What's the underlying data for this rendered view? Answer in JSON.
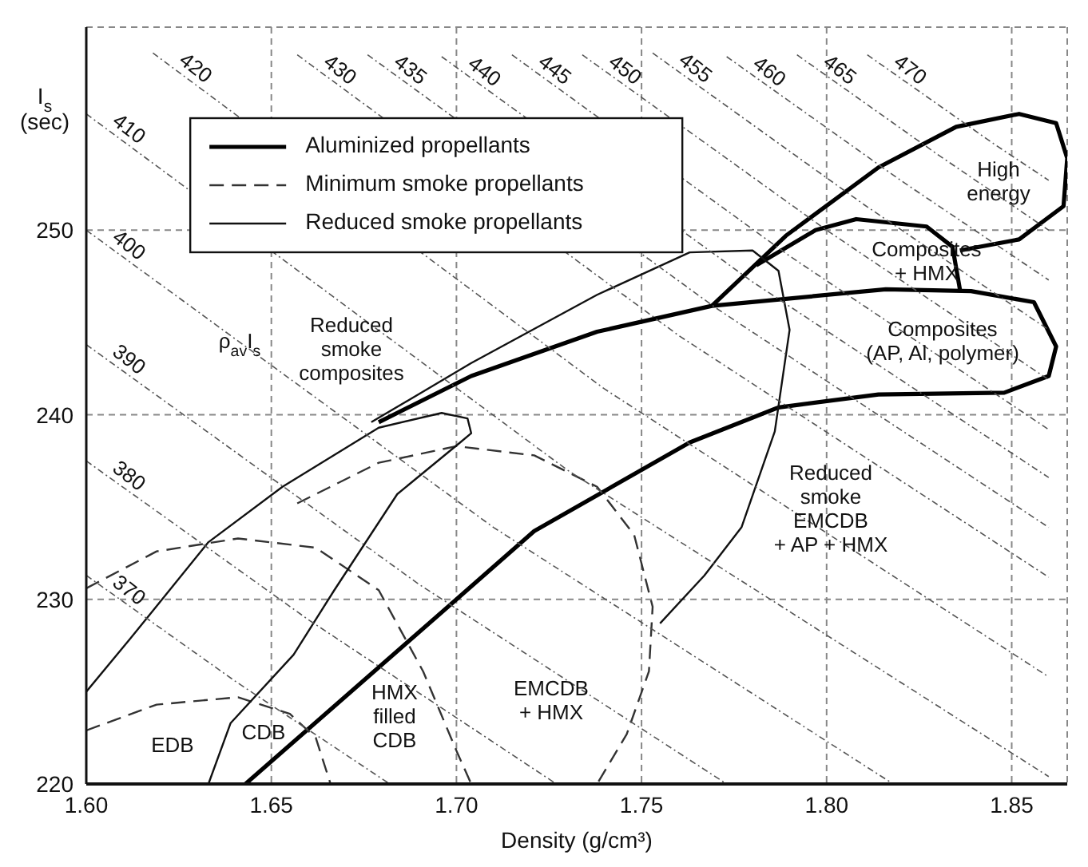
{
  "chart_data": {
    "type": "line",
    "xlabel": "Density (g/cm³)",
    "ylabel": "I$_{s}$\n(sec)",
    "xlim": [
      1.6,
      1.865
    ],
    "ylim": [
      220,
      261
    ],
    "xticks": [
      {
        "value": 1.6,
        "label": "1.60"
      },
      {
        "value": 1.65,
        "label": "1.65"
      },
      {
        "value": 1.7,
        "label": "1.70"
      },
      {
        "value": 1.75,
        "label": "1.75"
      },
      {
        "value": 1.8,
        "label": "1.80"
      },
      {
        "value": 1.85,
        "label": "1.85"
      }
    ],
    "yticks": [
      220,
      230,
      240,
      250
    ],
    "grid": true,
    "legend": "top left",
    "series": [
      {
        "name": "Aluminized propellants",
        "color": "#000000",
        "line_style": "solid",
        "x": [
          1.643,
          1.7,
          1.721,
          1.763,
          1.787,
          1.814,
          1.848,
          1.86,
          1.862,
          1.856,
          1.839,
          1.816,
          1.769,
          1.738,
          1.704,
          1.679
        ],
        "values": [
          220.0,
          230.0,
          233.7,
          238.5,
          240.4,
          241.1,
          241.2,
          242.1,
          243.7,
          246.1,
          246.7,
          246.8,
          245.9,
          244.5,
          242.1,
          239.6
        ]
      },
      {
        "color": "#000000",
        "line_style": "solid",
        "x": [
          1.769,
          1.789,
          1.814,
          1.835,
          1.852,
          1.862,
          1.865,
          1.864,
          1.852,
          1.836
        ],
        "values": [
          245.9,
          249.7,
          253.4,
          255.6,
          256.3,
          255.8,
          253.9,
          251.3,
          249.5,
          248.9
        ]
      },
      {
        "color": "#000000",
        "line_style": "solid",
        "x": [
          1.781,
          1.797,
          1.808,
          1.827,
          1.834,
          1.836
        ],
        "values": [
          248.1,
          250.0,
          250.6,
          250.2,
          249.1,
          246.8
        ]
      },
      {
        "name": "Minimum smoke propellants",
        "color": "#333333",
        "line_style": "dashed",
        "x": [
          1.6,
          1.619,
          1.641,
          1.655,
          1.662,
          1.666
        ],
        "values": [
          222.9,
          224.3,
          224.7,
          223.8,
          222.5,
          220.0
        ]
      },
      {
        "color": "#333333",
        "line_style": "dashed",
        "x": [
          1.6,
          1.619,
          1.641,
          1.662,
          1.679,
          1.691,
          1.7,
          1.704
        ],
        "values": [
          230.6,
          232.6,
          233.3,
          232.8,
          230.5,
          226.1,
          221.8,
          220.0
        ]
      },
      {
        "color": "#333333",
        "line_style": "dashed",
        "x": [
          1.657,
          1.679,
          1.7,
          1.721,
          1.738,
          1.748,
          1.753,
          1.752,
          1.746,
          1.738
        ],
        "values": [
          235.2,
          237.4,
          238.3,
          237.8,
          236.1,
          233.5,
          229.6,
          226.1,
          222.7,
          220.0
        ]
      },
      {
        "name": "Reduced smoke propellants",
        "color": "#111111",
        "line_style": "solid",
        "x": [
          1.6,
          1.612,
          1.633,
          1.653,
          1.679,
          1.696,
          1.703,
          1.704,
          1.701,
          1.684,
          1.667,
          1.656,
          1.639,
          1.633
        ],
        "values": [
          225.0,
          227.9,
          233.1,
          236.1,
          239.3,
          240.1,
          239.8,
          239.0,
          238.5,
          235.7,
          230.5,
          227.0,
          223.3,
          220.0
        ]
      },
      {
        "color": "#111111",
        "line_style": "solid",
        "x": [
          1.677,
          1.704,
          1.738,
          1.763,
          1.78,
          1.787,
          1.79,
          1.786,
          1.777,
          1.767,
          1.755
        ],
        "values": [
          239.6,
          242.8,
          246.5,
          248.8,
          248.9,
          247.8,
          244.6,
          239.1,
          233.9,
          231.3,
          228.7
        ]
      },
      {
        "name": "370",
        "color": "#555555",
        "line_style": "dotted",
        "x": [
          1.6,
          1.64,
          1.682
        ],
        "values": [
          231.3,
          225.6,
          220.0
        ]
      },
      {
        "name": "380",
        "color": "#555555",
        "line_style": "dotted",
        "x": [
          1.6,
          1.66,
          1.727
        ],
        "values": [
          237.5,
          228.9,
          220.0
        ]
      },
      {
        "name": "390",
        "color": "#555555",
        "line_style": "dotted",
        "x": [
          1.6,
          1.69,
          1.773
        ],
        "values": [
          243.8,
          230.8,
          220.0
        ]
      },
      {
        "name": "400",
        "color": "#555555",
        "line_style": "dotted",
        "x": [
          1.6,
          1.71,
          1.818
        ],
        "values": [
          250.0,
          233.9,
          220.0
        ]
      },
      {
        "name": "410",
        "color": "#555555",
        "line_style": "dotted",
        "x": [
          1.6,
          1.73,
          1.86
        ],
        "values": [
          256.3,
          237.0,
          220.4
        ]
      },
      {
        "name": "420",
        "color": "#555555",
        "line_style": "dotted",
        "x": [
          1.618,
          1.74,
          1.86
        ],
        "values": [
          259.6,
          241.4,
          225.8
        ]
      },
      {
        "name": "430",
        "color": "#555555",
        "line_style": "dotted",
        "x": [
          1.657,
          1.76,
          1.86
        ],
        "values": [
          259.5,
          244.3,
          231.2
        ]
      },
      {
        "name": "435",
        "color": "#555555",
        "line_style": "dotted",
        "x": [
          1.676,
          1.77,
          1.86
        ],
        "values": [
          259.5,
          245.8,
          233.9
        ]
      },
      {
        "name": "440",
        "color": "#555555",
        "line_style": "dotted",
        "x": [
          1.696,
          1.78,
          1.86
        ],
        "values": [
          259.4,
          247.2,
          236.6
        ]
      },
      {
        "name": "445",
        "color": "#555555",
        "line_style": "dotted",
        "x": [
          1.715,
          1.79,
          1.86
        ],
        "values": [
          259.5,
          248.6,
          239.2
        ]
      },
      {
        "name": "450",
        "color": "#555555",
        "line_style": "dotted",
        "x": [
          1.734,
          1.8,
          1.86
        ],
        "values": [
          259.5,
          250.0,
          241.9
        ]
      },
      {
        "name": "455",
        "color": "#555555",
        "line_style": "dotted",
        "x": [
          1.753,
          1.81,
          1.86
        ],
        "values": [
          259.6,
          251.4,
          244.6
        ]
      },
      {
        "name": "460",
        "color": "#555555",
        "line_style": "dotted",
        "x": [
          1.773,
          1.82,
          1.86
        ],
        "values": [
          259.4,
          252.7,
          247.3
        ]
      },
      {
        "name": "465",
        "color": "#555555",
        "line_style": "dotted",
        "x": [
          1.792,
          1.83,
          1.86
        ],
        "values": [
          259.5,
          254.1,
          250.0
        ]
      },
      {
        "name": "470",
        "color": "#555555",
        "line_style": "dotted",
        "x": [
          1.811,
          1.845,
          1.86
        ],
        "values": [
          259.5,
          254.7,
          252.7
        ]
      }
    ],
    "annotations": [
      "High\nenergy",
      "Composites\n+ HMX",
      "Composites\n(AP, Al, polymer)",
      "Reduced\nsmoke\ncomposites",
      "Reduced\nsmoke\nEMCDB\n+ AP + HMX",
      "EMCDB\n+ HMX",
      "HMX\nfilled\nCDB",
      "CDB",
      "EDB",
      "ρ$_{av}$I$_{s}$"
    ]
  }
}
